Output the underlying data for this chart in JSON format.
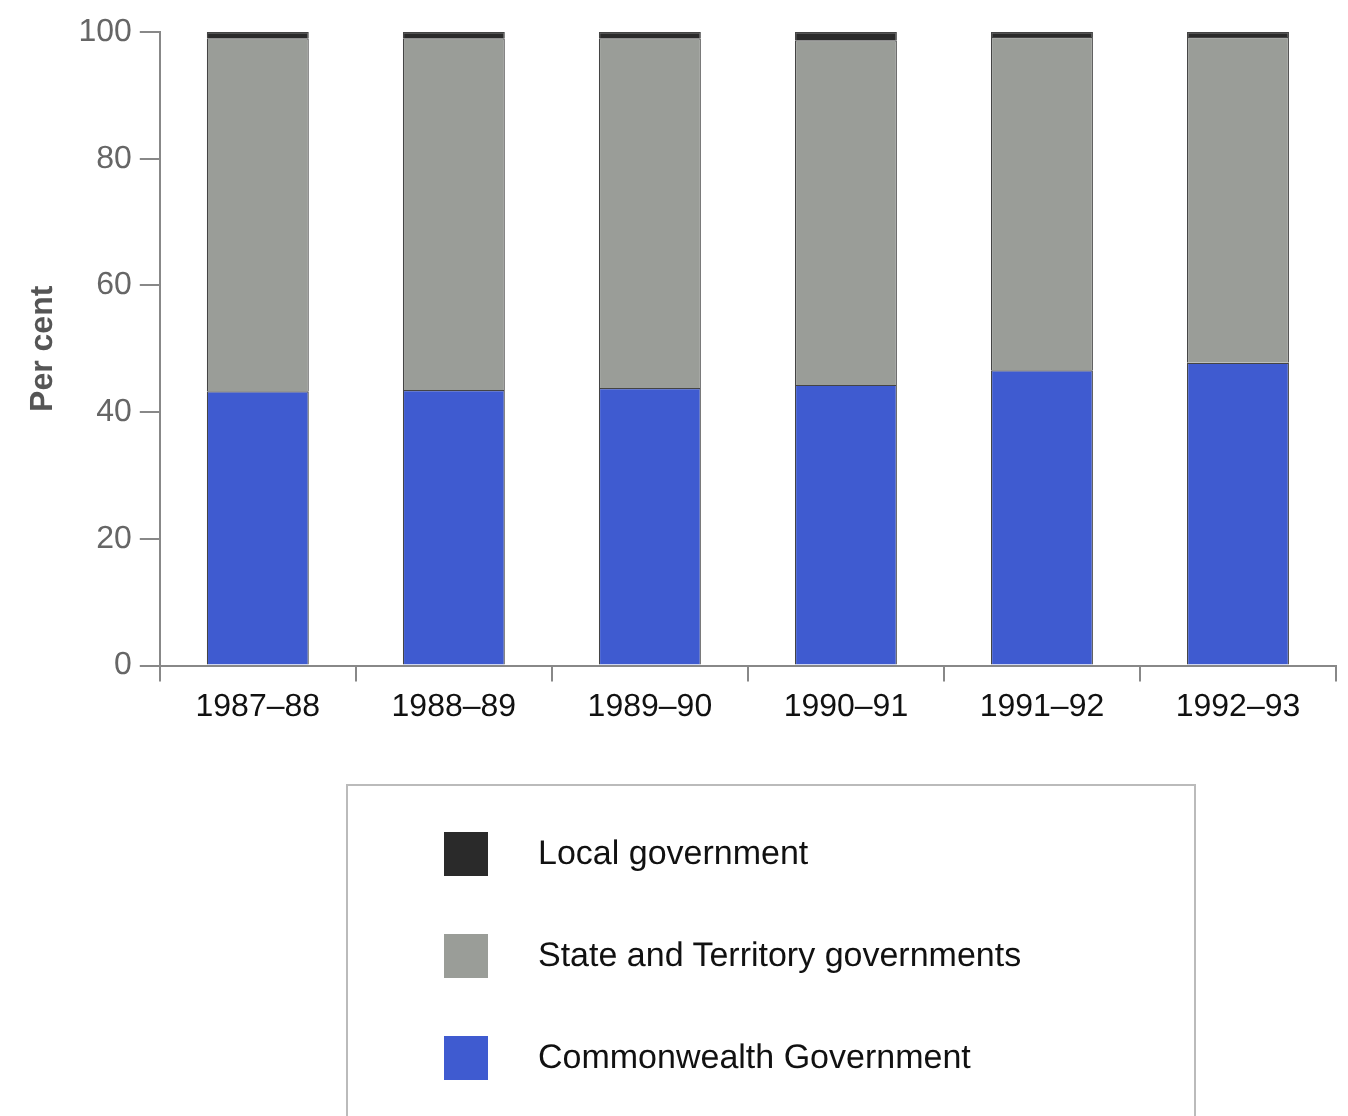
{
  "chart_data": {
    "type": "bar",
    "ylabel": "Per cent",
    "categories": [
      "1987–88",
      "1988–89",
      "1989–90",
      "1990–91",
      "1991–92",
      "1992–93"
    ],
    "series": [
      {
        "name": "Commonwealth Government",
        "color": "#3f5bd0",
        "values": [
          43.3,
          43.5,
          43.8,
          44.3,
          46.6,
          47.8
        ]
      },
      {
        "name": "State and Territory governments",
        "color": "#9a9d98",
        "values": [
          55.7,
          55.5,
          55.2,
          54.4,
          52.6,
          51.4
        ]
      },
      {
        "name": "Local government",
        "color": "#2a2a2a",
        "values": [
          1.0,
          1.0,
          1.0,
          1.3,
          0.8,
          0.8
        ]
      }
    ],
    "stacked": true,
    "ylim": [
      0,
      100
    ],
    "yticks": [
      0,
      20,
      40,
      60,
      80,
      100
    ],
    "grid": false,
    "legend": "bottom"
  }
}
